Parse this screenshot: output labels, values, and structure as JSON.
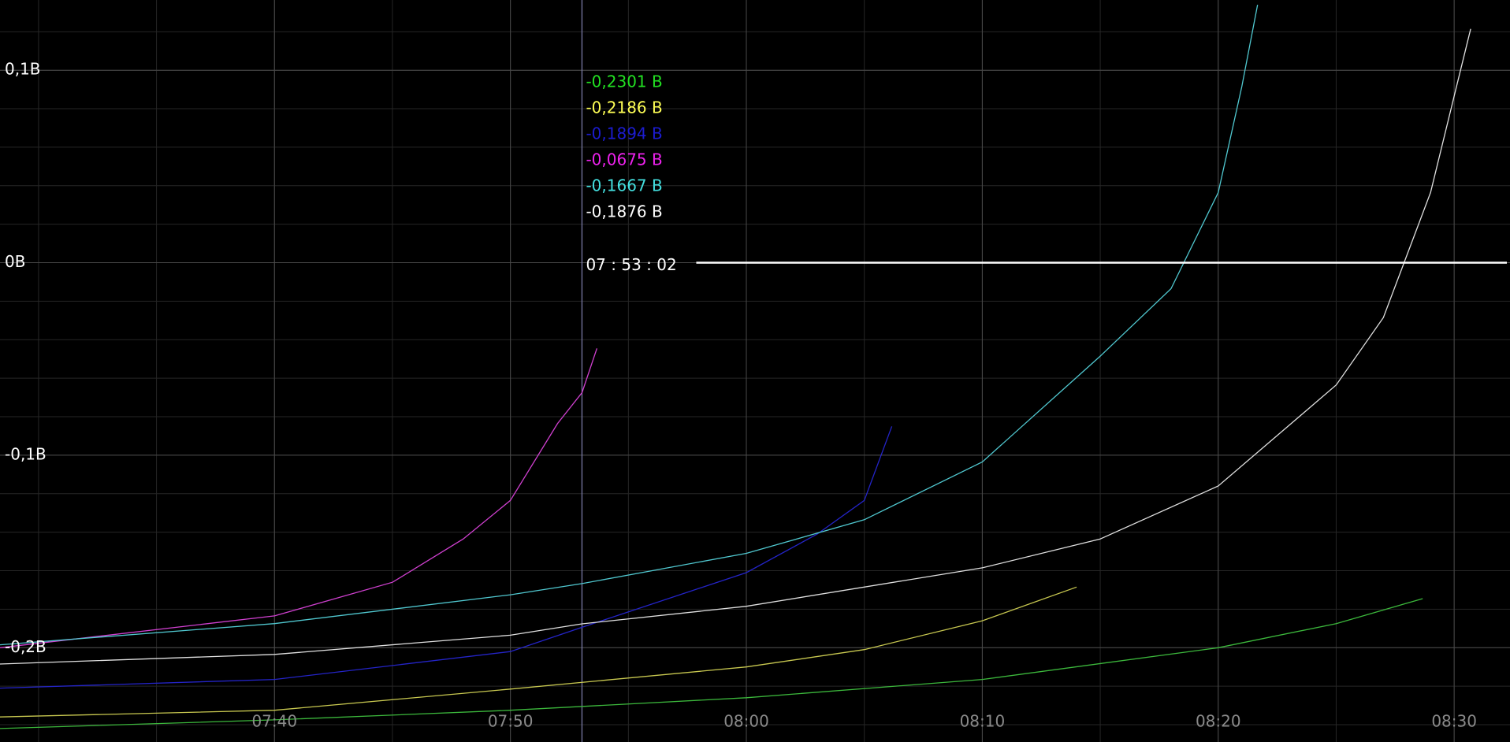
{
  "chart_data": {
    "type": "line",
    "xlim": [
      "07:28:22",
      "08:32:22"
    ],
    "xticks": [
      "07:40",
      "07:50",
      "08:00",
      "08:10",
      "08:20",
      "08:30"
    ],
    "ylim": [
      -0.249,
      0.1365
    ],
    "yticks": [
      {
        "value": 0.1,
        "label": "0,1B"
      },
      {
        "value": 0,
        "label": "0B"
      },
      {
        "value": -0.1,
        "label": "-0,1B"
      },
      {
        "value": -0.2,
        "label": "-0,2B"
      }
    ],
    "grid": true,
    "minor_grid": true,
    "cursor_x": "07:53:02",
    "cursor_label": "07 : 53 : 02",
    "series": [
      {
        "color": "#3cb83c",
        "label_color": "#22e022",
        "cursor_value": -0.2301,
        "cursor_label": "-0,2301 B",
        "x": [
          "07:28:22",
          "07:40:00",
          "07:50:00",
          "08:00:00",
          "08:10:00",
          "08:20:00",
          "08:25:00",
          "08:28:40"
        ],
        "values": [
          -0.242,
          -0.2375,
          -0.2325,
          -0.226,
          -0.2165,
          -0.2,
          -0.1875,
          -0.1745
        ]
      },
      {
        "color": "#c8c850",
        "label_color": "#ffff55",
        "cursor_value": -0.2186,
        "cursor_label": "-0,2186 B",
        "x": [
          "07:28:22",
          "07:40:00",
          "07:50:00",
          "08:00:00",
          "08:05:00",
          "08:10:00",
          "08:14:00"
        ],
        "values": [
          -0.236,
          -0.2325,
          -0.2215,
          -0.21,
          -0.201,
          -0.186,
          -0.1685
        ]
      },
      {
        "color": "#2424c8",
        "label_color": "#1c1cd0",
        "cursor_value": -0.1894,
        "cursor_label": "-0,1894 B",
        "x": [
          "07:28:22",
          "07:40:00",
          "07:50:00",
          "07:53:02",
          "08:00:00",
          "08:03:00",
          "08:05:00",
          "08:06:10"
        ],
        "values": [
          -0.221,
          -0.2165,
          -0.202,
          -0.1894,
          -0.161,
          -0.141,
          -0.1235,
          -0.085
        ]
      },
      {
        "color": "#d040d0",
        "label_color": "#ee22ee",
        "cursor_value": -0.0675,
        "cursor_label": "-0,0675 B",
        "x": [
          "07:28:22",
          "07:40:00",
          "07:45:00",
          "07:48:00",
          "07:50:00",
          "07:52:00",
          "07:53:02",
          "07:53:40"
        ],
        "values": [
          -0.2,
          -0.1835,
          -0.166,
          -0.1435,
          -0.1235,
          -0.0835,
          -0.0675,
          -0.0445
        ]
      },
      {
        "color": "#50c8d0",
        "label_color": "#44e0e0",
        "cursor_value": -0.1667,
        "cursor_label": "-0,1667 B",
        "x": [
          "07:28:22",
          "07:40:00",
          "07:50:00",
          "07:53:02",
          "08:00:00",
          "08:05:00",
          "08:10:00",
          "08:15:00",
          "08:18:00",
          "08:20:00",
          "08:21:00",
          "08:21:40"
        ],
        "values": [
          -0.1985,
          -0.1875,
          -0.1725,
          -0.1667,
          -0.151,
          -0.1335,
          -0.1035,
          -0.0485,
          -0.0135,
          0.0365,
          0.0915,
          0.134
        ]
      },
      {
        "color": "#e0e0e0",
        "label_color": "#ffffff",
        "cursor_value": -0.1876,
        "cursor_label": "-0,1876 B",
        "x": [
          "07:28:22",
          "07:40:00",
          "07:50:00",
          "07:53:02",
          "08:00:00",
          "08:10:00",
          "08:15:00",
          "08:20:00",
          "08:25:00",
          "08:27:00",
          "08:29:00",
          "08:30:00",
          "08:30:42"
        ],
        "values": [
          -0.2085,
          -0.2035,
          -0.1935,
          -0.1876,
          -0.1785,
          -0.1585,
          -0.1435,
          -0.116,
          -0.0635,
          -0.0285,
          0.0365,
          0.0865,
          0.1215
        ]
      }
    ]
  }
}
